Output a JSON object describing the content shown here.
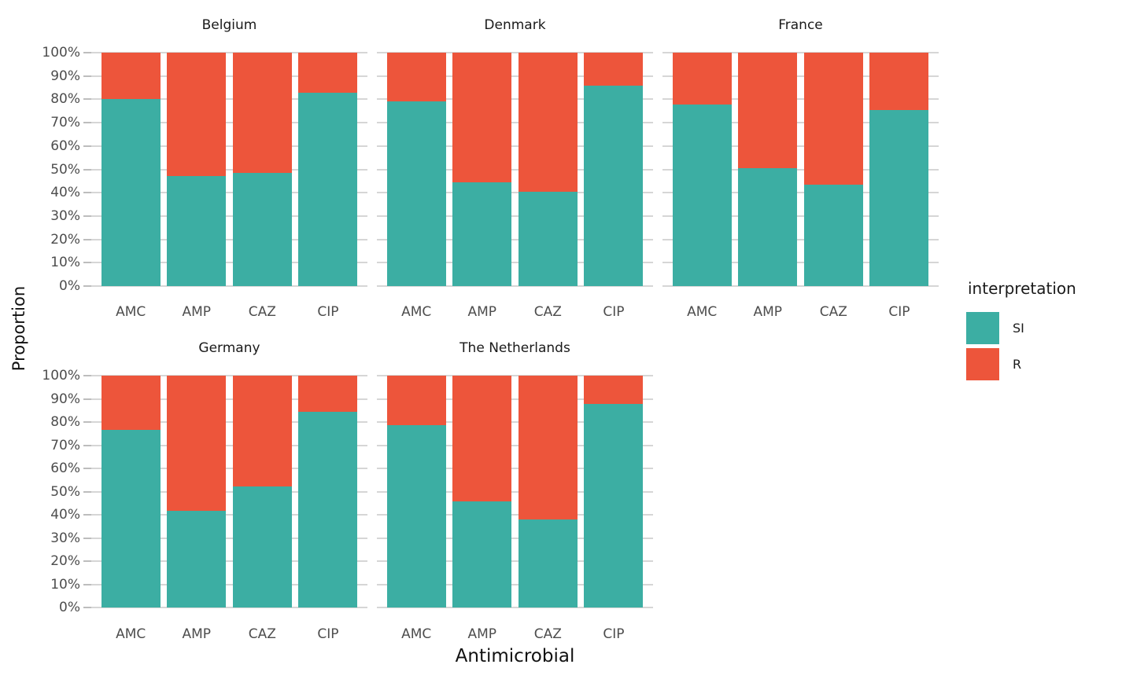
{
  "chart_data": {
    "type": "bar",
    "stacked": true,
    "units": "percent",
    "title": "",
    "xlabel": "Antimicrobial",
    "ylabel": "Proportion",
    "ylim": [
      0,
      100
    ],
    "y_ticks": [
      "0%",
      "10%",
      "20%",
      "30%",
      "40%",
      "50%",
      "60%",
      "70%",
      "80%",
      "90%",
      "100%"
    ],
    "grid": "major-horizontal",
    "categories": [
      "AMC",
      "AMP",
      "CAZ",
      "CIP"
    ],
    "series_names": [
      "SI",
      "R"
    ],
    "facets": [
      {
        "title": "Belgium",
        "series": [
          {
            "name": "SI",
            "values": [
              80.0,
              47.3,
              48.6,
              83.0
            ]
          },
          {
            "name": "R",
            "values": [
              20.0,
              52.7,
              51.4,
              17.0
            ]
          }
        ]
      },
      {
        "title": "Denmark",
        "series": [
          {
            "name": "SI",
            "values": [
              79.0,
              44.4,
              40.4,
              85.9
            ]
          },
          {
            "name": "R",
            "values": [
              21.0,
              55.6,
              59.6,
              14.1
            ]
          }
        ]
      },
      {
        "title": "France",
        "series": [
          {
            "name": "SI",
            "values": [
              77.9,
              50.6,
              43.3,
              75.5
            ]
          },
          {
            "name": "R",
            "values": [
              22.1,
              49.4,
              56.7,
              24.5
            ]
          }
        ]
      },
      {
        "title": "Germany",
        "series": [
          {
            "name": "SI",
            "values": [
              76.6,
              41.6,
              52.3,
              84.5
            ]
          },
          {
            "name": "R",
            "values": [
              23.4,
              58.4,
              47.7,
              15.5
            ]
          }
        ]
      },
      {
        "title": "The Netherlands",
        "series": [
          {
            "name": "SI",
            "values": [
              78.6,
              45.8,
              38.0,
              87.7
            ]
          },
          {
            "name": "R",
            "values": [
              21.4,
              54.2,
              62.0,
              12.3
            ]
          }
        ]
      }
    ],
    "legend": {
      "title": "interpretation",
      "position": "right",
      "items": [
        {
          "label": "SI",
          "color": "#3CAEA3"
        },
        {
          "label": "R",
          "color": "#ED553B"
        }
      ]
    },
    "colors": {
      "SI": "#3CAEA3",
      "R": "#ED553B",
      "gridline": "#d6d6d6",
      "tick_text": "#4d4d4d",
      "background": "#ffffff"
    }
  }
}
